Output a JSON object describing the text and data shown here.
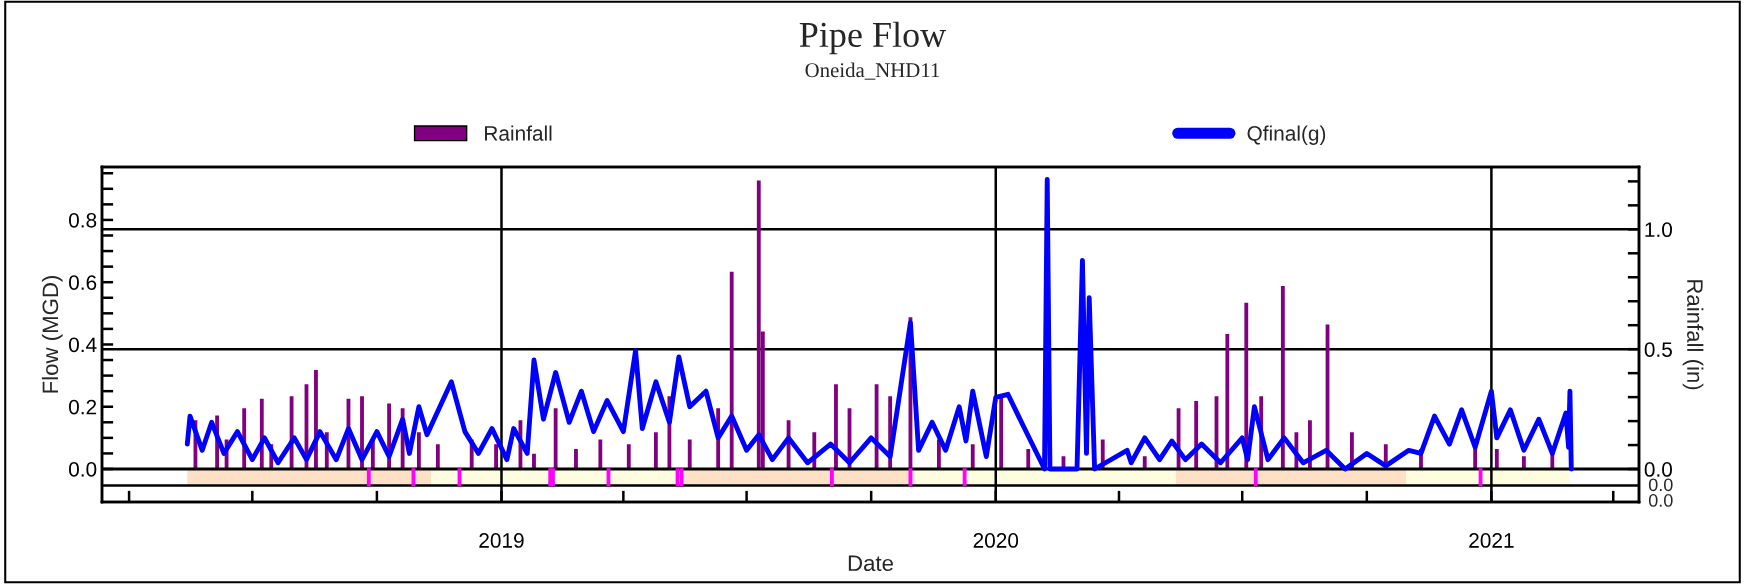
{
  "chart_data": {
    "type": "line",
    "title": "Pipe Flow",
    "subtitle": "Oneida_NHD11",
    "xlabel": "Date",
    "ylabel": "Flow (MGD)",
    "y2label": "Rainfall (in)",
    "legend": "top",
    "annotations": [
      "0.0",
      "0.0"
    ],
    "xlim": [
      "2018-03-12",
      "2021-04-20"
    ],
    "xticks": [
      {
        "value": "2018-04-01",
        "label": null
      },
      {
        "value": "2018-07-01",
        "label": null
      },
      {
        "value": "2018-10-01",
        "label": null
      },
      {
        "value": "2019-01-01",
        "label": "2019"
      },
      {
        "value": "2019-04-01",
        "label": null
      },
      {
        "value": "2019-07-01",
        "label": null
      },
      {
        "value": "2019-10-01",
        "label": null
      },
      {
        "value": "2020-01-01",
        "label": "2020"
      },
      {
        "value": "2020-04-01",
        "label": null
      },
      {
        "value": "2020-07-01",
        "label": null
      },
      {
        "value": "2020-10-01",
        "label": null
      },
      {
        "value": "2021-01-01",
        "label": "2021"
      },
      {
        "value": "2021-04-01",
        "label": null
      }
    ],
    "ylim": [
      -0.106,
      0.97
    ],
    "yticks": [
      {
        "value": 0,
        "label": "0.0"
      },
      {
        "value": 0.05,
        "label": null
      },
      {
        "value": 0.1,
        "label": null
      },
      {
        "value": 0.15,
        "label": null
      },
      0.2,
      {
        "value": 0.25,
        "label": null
      },
      {
        "value": 0.3,
        "label": null
      },
      {
        "value": 0.35,
        "label": null
      },
      0.4,
      {
        "value": 0.45,
        "label": null
      },
      {
        "value": 0.5,
        "label": null
      },
      {
        "value": 0.55,
        "label": null
      },
      0.6,
      {
        "value": 0.65,
        "label": null
      },
      {
        "value": 0.7,
        "label": null
      },
      {
        "value": 0.75,
        "label": null
      },
      0.8,
      {
        "value": 0.85,
        "label": null
      },
      {
        "value": 0.9,
        "label": null
      },
      {
        "value": 0.95,
        "label": null
      }
    ],
    "y2lim": [
      -0.1375,
      1.26
    ],
    "y2ticks": [
      {
        "value": 0,
        "label": "0.0"
      },
      {
        "value": 0.1,
        "label": null
      },
      {
        "value": 0.2,
        "label": null
      },
      {
        "value": 0.3,
        "label": null
      },
      {
        "value": 0.4,
        "label": null
      },
      0.5,
      {
        "value": 0.6,
        "label": null
      },
      {
        "value": 0.7,
        "label": null
      },
      {
        "value": 0.8,
        "label": null
      },
      {
        "value": 0.9,
        "label": null
      },
      {
        "value": 1,
        "label": "1.0"
      },
      {
        "value": 1.1,
        "label": null
      },
      {
        "value": 1.2,
        "label": null
      }
    ],
    "ref_lines": [
      {
        "axis": "y2",
        "value": 0.5,
        "color": "#000000"
      },
      {
        "axis": "y2",
        "value": 1,
        "color": "#000000"
      },
      {
        "axis": "y",
        "value": 0,
        "color": "#000000"
      },
      {
        "axis": "x",
        "value": "2019-01-01",
        "color": "#000000"
      },
      {
        "axis": "x",
        "value": "2020-01-01",
        "color": "#000000"
      },
      {
        "axis": "x",
        "value": "2021-01-01",
        "color": "#000000"
      }
    ],
    "bands": [
      {
        "axis": "x",
        "from": "2018-05-14",
        "to": "2018-11-10",
        "color": "#fde0c5"
      },
      {
        "axis": "x",
        "from": "2018-11-10",
        "to": "2019-05-16",
        "color": "#fffde0"
      },
      {
        "axis": "x",
        "from": "2019-05-16",
        "to": "2019-11-02",
        "color": "#fde0c5"
      },
      {
        "axis": "x",
        "from": "2019-11-02",
        "to": "2020-05-13",
        "color": "#fffde0"
      },
      {
        "axis": "x",
        "from": "2020-05-13",
        "to": "2020-10-30",
        "color": "#fde0c5"
      },
      {
        "axis": "x",
        "from": "2020-10-30",
        "to": "2021-02-28",
        "color": "#fffde0"
      }
    ],
    "series": [
      {
        "type": "bar",
        "color": "#ff00ff",
        "x": [
          "2018-09-25",
          "2018-10-28",
          "2018-12-01",
          "2019-02-06",
          "2019-02-08",
          "2019-03-21",
          "2019-05-11",
          "2019-05-14",
          "2019-09-02",
          "2019-10-30",
          "2019-12-09",
          "2020-07-11",
          "2020-12-24"
        ],
        "base": [
          -0.053,
          -0.053,
          -0.053,
          -0.053,
          -0.053,
          -0.053,
          -0.053,
          -0.053,
          -0.053,
          -0.053,
          -0.053,
          -0.053,
          -0.053
        ],
        "values": [
          0.053,
          0.053,
          0.053,
          0.053,
          0.053,
          0.053,
          0.053,
          0.053,
          0.053,
          0.053,
          0.053,
          0.053,
          0.053
        ]
      },
      {
        "name": "Rainfall",
        "type": "bar",
        "axis": "y2",
        "color": "#800080",
        "x": [
          "2018-05-20",
          "2018-06-05",
          "2018-06-12",
          "2018-06-25",
          "2018-07-08",
          "2018-07-15",
          "2018-07-30",
          "2018-08-10",
          "2018-08-17",
          "2018-08-25",
          "2018-09-10",
          "2018-09-20",
          "2018-09-28",
          "2018-10-10",
          "2018-10-20",
          "2018-11-01",
          "2018-11-15",
          "2018-12-10",
          "2018-12-28",
          "2019-01-15",
          "2019-01-25",
          "2019-02-10",
          "2019-02-25",
          "2019-03-15",
          "2019-04-05",
          "2019-04-25",
          "2019-05-05",
          "2019-05-20",
          "2019-06-10",
          "2019-06-20",
          "2019-07-10",
          "2019-07-13",
          "2019-08-01",
          "2019-08-20",
          "2019-09-05",
          "2019-09-15",
          "2019-10-05",
          "2019-10-15",
          "2019-10-30",
          "2019-11-20",
          "2019-12-15",
          "2020-01-05",
          "2020-01-25",
          "2020-02-20",
          "2020-03-20",
          "2020-04-20",
          "2020-05-15",
          "2020-05-28",
          "2020-06-12",
          "2020-06-20",
          "2020-07-04",
          "2020-07-15",
          "2020-07-31",
          "2020-08-10",
          "2020-08-20",
          "2020-09-02",
          "2020-09-20",
          "2020-10-15",
          "2020-11-10",
          "2020-12-20",
          "2021-01-05",
          "2021-01-25",
          "2021-02-15"
        ],
        "values": [
          0.2,
          0.22,
          0.12,
          0.25,
          0.29,
          0.1,
          0.3,
          0.35,
          0.41,
          0.15,
          0.29,
          0.3,
          0.12,
          0.27,
          0.25,
          0.15,
          0.1,
          0.12,
          0.1,
          0.2,
          0.06,
          0.25,
          0.08,
          0.12,
          0.1,
          0.15,
          0.3,
          0.12,
          0.25,
          0.82,
          1.2,
          0.57,
          0.2,
          0.15,
          0.35,
          0.25,
          0.35,
          0.3,
          0.63,
          0.12,
          0.1,
          0.3,
          0.08,
          0.05,
          0.12,
          0.05,
          0.25,
          0.28,
          0.3,
          0.56,
          0.69,
          0.3,
          0.76,
          0.15,
          0.2,
          0.6,
          0.15,
          0.1,
          0.08,
          0.1,
          0.08,
          0.05,
          0.06
        ]
      },
      {
        "name": "Qfinal(g)",
        "color": "#0000ff",
        "x": [
          "2018-05-14",
          "2018-05-16",
          "2018-05-25",
          "2018-06-01",
          "2018-06-10",
          "2018-06-20",
          "2018-07-01",
          "2018-07-10",
          "2018-07-20",
          "2018-08-01",
          "2018-08-10",
          "2018-08-20",
          "2018-09-01",
          "2018-09-10",
          "2018-09-20",
          "2018-10-01",
          "2018-10-10",
          "2018-10-20",
          "2018-10-25",
          "2018-11-01",
          "2018-11-07",
          "2018-11-15",
          "2018-11-25",
          "2018-12-05",
          "2018-12-15",
          "2018-12-25",
          "2019-01-05",
          "2019-01-10",
          "2019-01-14",
          "2019-01-20",
          "2019-01-25",
          "2019-02-01",
          "2019-02-10",
          "2019-02-20",
          "2019-03-01",
          "2019-03-10",
          "2019-03-20",
          "2019-04-01",
          "2019-04-10",
          "2019-04-15",
          "2019-04-25",
          "2019-05-05",
          "2019-05-12",
          "2019-05-20",
          "2019-06-01",
          "2019-06-10",
          "2019-06-20",
          "2019-07-01",
          "2019-07-10",
          "2019-07-20",
          "2019-08-01",
          "2019-08-15",
          "2019-09-01",
          "2019-09-15",
          "2019-10-01",
          "2019-10-15",
          "2019-10-30",
          "2019-11-05",
          "2019-11-15",
          "2019-11-25",
          "2019-12-05",
          "2019-12-10",
          "2019-12-15",
          "2019-12-25",
          "2020-01-01",
          "2020-01-10",
          "2020-01-20",
          "2020-01-25",
          "2020-02-06",
          "2020-02-08",
          "2020-02-10",
          "2020-02-12",
          "2020-03-01",
          "2020-03-05",
          "2020-03-08",
          "2020-03-10",
          "2020-03-14",
          "2020-03-16",
          "2020-04-07",
          "2020-04-10",
          "2020-04-20",
          "2020-05-01",
          "2020-05-10",
          "2020-05-20",
          "2020-06-01",
          "2020-06-15",
          "2020-07-01",
          "2020-07-05",
          "2020-07-10",
          "2020-07-20",
          "2020-08-01",
          "2020-08-15",
          "2020-09-01",
          "2020-09-15",
          "2020-10-01",
          "2020-10-15",
          "2020-11-01",
          "2020-11-10",
          "2020-11-20",
          "2020-12-01",
          "2020-12-10",
          "2020-12-20",
          "2021-01-01",
          "2021-01-05",
          "2021-01-15",
          "2021-01-25",
          "2021-02-05",
          "2021-02-15",
          "2021-02-25",
          "2021-02-27",
          "2021-02-28",
          "2021-03-01"
        ],
        "values": [
          0.08,
          0.17,
          0.06,
          0.15,
          0.05,
          0.12,
          0.03,
          0.1,
          0.02,
          0.1,
          0.03,
          0.12,
          0.03,
          0.13,
          0.03,
          0.12,
          0.04,
          0.16,
          0.05,
          0.2,
          0.11,
          null,
          0.28,
          0.12,
          0.05,
          0.13,
          0.03,
          0.13,
          null,
          0.05,
          0.35,
          0.16,
          0.31,
          0.15,
          0.25,
          0.12,
          0.22,
          0.12,
          0.38,
          0.13,
          0.28,
          0.15,
          0.36,
          0.2,
          0.25,
          0.1,
          0.17,
          0.06,
          0.11,
          0.03,
          0.1,
          0.02,
          0.08,
          0.02,
          0.1,
          0.04,
          0.47,
          0.06,
          0.15,
          0.06,
          0.2,
          0.09,
          0.25,
          0.04,
          0.23,
          0.24,
          0.15,
          null,
          0.0,
          0.93,
          0.0,
          null,
          0.0,
          0.67,
          0.05,
          0.55,
          0.0,
          null,
          0.06,
          0.02,
          0.1,
          0.03,
          0.09,
          0.03,
          0.08,
          0.02,
          0.1,
          0.03,
          0.2,
          0.03,
          0.1,
          0.02,
          0.06,
          0.0,
          0.05,
          0.01,
          0.06,
          0.05,
          0.17,
          0.08,
          0.19,
          0.07,
          0.25,
          0.1,
          0.19,
          0.06,
          0.16,
          0.05,
          0.18,
          0.07,
          0.25,
          0.0
        ]
      }
    ]
  }
}
